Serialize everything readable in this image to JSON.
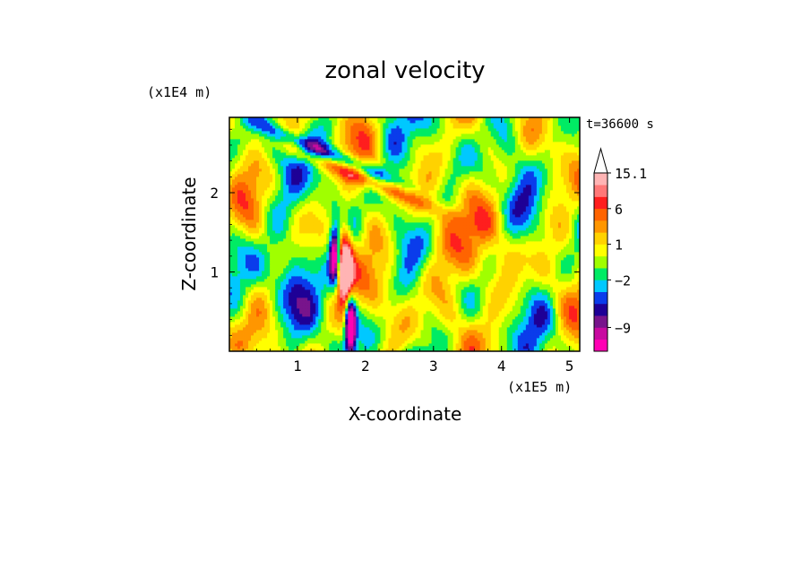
{
  "chart_data": {
    "type": "heatmap",
    "title": "zonal velocity",
    "xlabel": "X-coordinate",
    "ylabel": "Z-coordinate",
    "x_scale_label": "(x1E5 m)",
    "y_scale_label": "(x1E4 m)",
    "time_label": "t=36600 s",
    "xlim": [
      0,
      5.15
    ],
    "ylim": [
      0,
      2.95
    ],
    "x_ticks": [
      1,
      2,
      3,
      4,
      5
    ],
    "y_ticks": [
      1,
      2
    ],
    "x_tick_labels": [
      "1",
      "2",
      "3",
      "4",
      "5"
    ],
    "y_tick_labels": [
      "1",
      "2"
    ],
    "colorbar": {
      "colors": [
        "#ff00b4",
        "#c80aa0",
        "#78148c",
        "#1e0096",
        "#0a3ceb",
        "#00c8ff",
        "#00eb64",
        "#a0ff00",
        "#ffff00",
        "#ffd200",
        "#ff9600",
        "#ff6400",
        "#ff1e1e",
        "#ff7878",
        "#ffb4b4",
        "#ffffff"
      ],
      "labels": [
        {
          "value": "15.1",
          "level_index": 15
        },
        {
          "value": "6",
          "level_index": 12
        },
        {
          "value": "1",
          "level_index": 9
        },
        {
          "value": "−2",
          "level_index": 6
        },
        {
          "value": "−9",
          "level_index": 2
        }
      ]
    },
    "plumes": [
      {
        "kind": "positive",
        "x": 1.7,
        "z": 1.05,
        "strength": 1.0
      },
      {
        "kind": "negative",
        "x": 1.78,
        "z": 0.35,
        "strength": 1.0
      },
      {
        "kind": "negative",
        "x": 1.55,
        "z": 1.2,
        "strength": 0.8
      },
      {
        "kind": "band_negative",
        "x": 1.6,
        "z": 2.45,
        "strength": 0.9
      },
      {
        "kind": "band_positive",
        "x": 1.9,
        "z": 2.2,
        "strength": 0.8
      },
      {
        "kind": "positive_region",
        "x": 3.3,
        "z": 1.2,
        "strength": 0.6
      },
      {
        "kind": "negative_region",
        "x": 0.6,
        "z": 0.9,
        "strength": 0.5
      }
    ]
  }
}
